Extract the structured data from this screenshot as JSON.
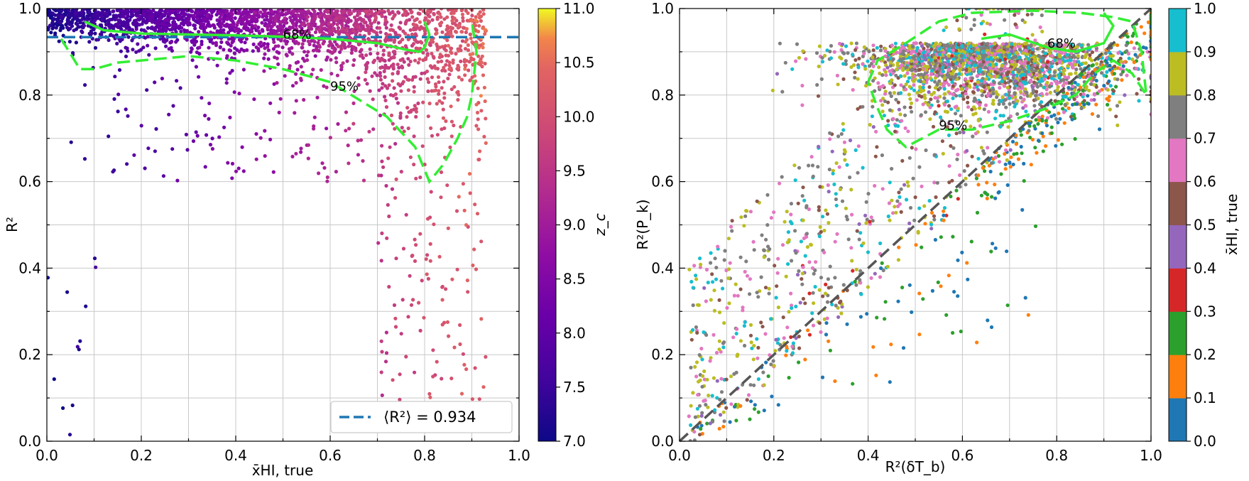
{
  "chart_data": [
    {
      "type": "scatter",
      "title": "",
      "xlabel": "x̄HI, true",
      "ylabel": "R²",
      "xlim": [
        0.0,
        1.0
      ],
      "ylim": [
        0.0,
        1.0
      ],
      "grid": true,
      "xticks": [
        "0.0",
        "0.2",
        "0.4",
        "0.6",
        "0.8",
        "1.0"
      ],
      "yticks": [
        "0.0",
        "0.2",
        "0.4",
        "0.6",
        "0.8",
        "1.0"
      ],
      "colorbar": {
        "label": "z_c",
        "range": [
          7.0,
          11.0
        ],
        "ticks": [
          "7.0",
          "7.5",
          "8.0",
          "8.5",
          "9.0",
          "9.5",
          "10.0",
          "10.5",
          "11.0"
        ],
        "colormap": "plasma"
      },
      "mean_line": {
        "y": 0.934,
        "color": "#1f77b4",
        "legend": "⟨R²⟩ = 0.934",
        "legend_position": "lower-right"
      },
      "contours": [
        {
          "label": "68%",
          "color": "#33ee33",
          "points": [
            [
              0.08,
              0.97
            ],
            [
              0.12,
              0.95
            ],
            [
              0.2,
              0.942
            ],
            [
              0.3,
              0.94
            ],
            [
              0.4,
              0.938
            ],
            [
              0.5,
              0.935
            ],
            [
              0.6,
              0.93
            ],
            [
              0.7,
              0.92
            ],
            [
              0.76,
              0.905
            ],
            [
              0.79,
              0.9
            ],
            [
              0.8,
              0.91
            ],
            [
              0.81,
              0.94
            ],
            [
              0.8,
              0.97
            ]
          ]
        },
        {
          "label": "95%",
          "color": "#33ee33",
          "points": [
            [
              0.03,
              0.93
            ],
            [
              0.07,
              0.86
            ],
            [
              0.1,
              0.86
            ],
            [
              0.15,
              0.875
            ],
            [
              0.2,
              0.88
            ],
            [
              0.3,
              0.89
            ],
            [
              0.4,
              0.88
            ],
            [
              0.5,
              0.86
            ],
            [
              0.6,
              0.83
            ],
            [
              0.66,
              0.79
            ],
            [
              0.72,
              0.75
            ],
            [
              0.78,
              0.68
            ],
            [
              0.81,
              0.6
            ],
            [
              0.84,
              0.64
            ],
            [
              0.87,
              0.7
            ],
            [
              0.89,
              0.75
            ],
            [
              0.9,
              0.8
            ],
            [
              0.91,
              0.9
            ],
            [
              0.9,
              0.97
            ]
          ]
        }
      ],
      "series_summary": "many points; x from 0 to 0.93, R² mostly 0.85–1.0 for x<0.7, spreading down to ~0.05 near x≈0.75–0.9; color increases with x (z_c ≈ 7 at x≈0 to ≈10.3 at x≈0.9)"
    },
    {
      "type": "scatter",
      "title": "",
      "xlabel": "R²(δT_b)",
      "ylabel": "R²(P_k)",
      "xlim": [
        0.0,
        1.0
      ],
      "ylim": [
        0.0,
        1.0
      ],
      "grid": true,
      "xticks": [
        "0.0",
        "0.2",
        "0.4",
        "0.6",
        "0.8",
        "1.0"
      ],
      "yticks": [
        "0.0",
        "0.2",
        "0.4",
        "0.6",
        "0.8",
        "1.0"
      ],
      "diagonal": {
        "from": [
          0,
          0
        ],
        "to": [
          1,
          1
        ],
        "color": "#555555",
        "style": "dashed"
      },
      "colorbar": {
        "label": "x̄HI, true",
        "range": [
          0.0,
          1.0
        ],
        "ticks": [
          "0.0",
          "0.1",
          "0.2",
          "0.3",
          "0.4",
          "0.5",
          "0.6",
          "0.7",
          "0.8",
          "0.9",
          "1.0"
        ],
        "colormap": "tab10",
        "colors": [
          "#1f77b4",
          "#ff7f0e",
          "#2ca02c",
          "#d62728",
          "#9467bd",
          "#8c564b",
          "#e377c2",
          "#7f7f7f",
          "#bcbd22",
          "#17becf"
        ]
      },
      "contours": [
        {
          "label": "68%",
          "color": "#33ee33",
          "points": [
            [
              0.64,
              0.93
            ],
            [
              0.7,
              0.94
            ],
            [
              0.78,
              0.91
            ],
            [
              0.84,
              0.9
            ],
            [
              0.9,
              0.92
            ],
            [
              0.92,
              0.96
            ],
            [
              0.9,
              0.99
            ]
          ]
        },
        {
          "label": "95%",
          "color": "#33ee33",
          "points": [
            [
              0.4,
              0.83
            ],
            [
              0.42,
              0.88
            ],
            [
              0.48,
              0.92
            ],
            [
              0.55,
              0.97
            ],
            [
              0.62,
              0.99
            ],
            [
              0.75,
              0.995
            ],
            [
              0.85,
              0.99
            ],
            [
              0.92,
              0.98
            ],
            [
              0.96,
              0.97
            ],
            [
              0.98,
              0.9
            ],
            [
              0.99,
              0.8
            ],
            [
              0.96,
              0.85
            ],
            [
              0.92,
              0.88
            ],
            [
              0.88,
              0.85
            ],
            [
              0.84,
              0.8
            ],
            [
              0.78,
              0.77
            ],
            [
              0.7,
              0.74
            ],
            [
              0.62,
              0.72
            ],
            [
              0.55,
              0.72
            ],
            [
              0.48,
              0.68
            ],
            [
              0.44,
              0.72
            ],
            [
              0.42,
              0.77
            ],
            [
              0.4,
              0.83
            ]
          ]
        }
      ],
      "series_summary": "many points clustered at R²(δT_b) 0.5–1.0, R²(P_k) 0.7–1.0; sparse points down to 0; high x̄HI (olive/gray) mostly above diagonal, low x̄HI (blue/orange) near and below diagonal"
    }
  ]
}
